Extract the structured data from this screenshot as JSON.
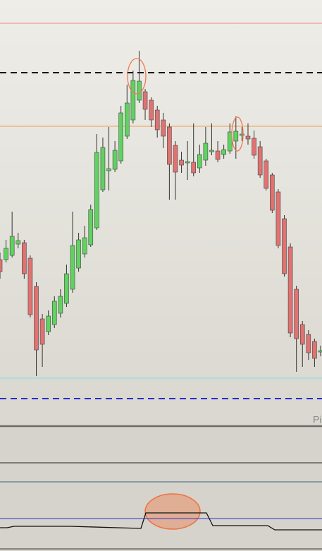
{
  "chart_data": [
    {
      "type": "candlestick",
      "open": [
        232,
        232,
        238,
        254,
        256,
        234,
        194,
        148,
        130,
        140,
        156,
        170,
        190,
        220,
        240,
        253,
        277,
        331,
        358,
        360,
        372,
        407,
        430,
        458,
        470,
        458,
        444,
        430,
        420,
        394,
        373,
        369,
        370,
        362,
        373,
        385,
        386,
        381,
        386,
        400,
        408,
        407,
        404,
        392,
        372,
        352,
        328,
        290,
        250,
        190,
        140,
        126,
        116,
        101
      ],
      "high": [
        242,
        260,
        300,
        270,
        260,
        238,
        200,
        155,
        160,
        180,
        190,
        225,
        300,
        270,
        280,
        310,
        410,
        405,
        420,
        400,
        450,
        480,
        500,
        528,
        474,
        462,
        450,
        440,
        425,
        400,
        385,
        400,
        425,
        395,
        420,
        425,
        400,
        395,
        425,
        435,
        420,
        425,
        415,
        400,
        375,
        355,
        332,
        295,
        255,
        195,
        145,
        132,
        120,
        110
      ],
      "low": [
        205,
        228,
        235,
        248,
        205,
        150,
        67,
        80,
        125,
        135,
        150,
        165,
        185,
        215,
        235,
        250,
        274,
        328,
        330,
        356,
        368,
        403,
        425,
        454,
        430,
        420,
        405,
        390,
        317,
        317,
        355,
        345,
        350,
        355,
        365,
        380,
        370,
        375,
        382,
        375,
        400,
        395,
        375,
        348,
        330,
        298,
        248,
        208,
        122,
        73,
        80,
        90,
        80,
        95
      ],
      "close": [
        215,
        248,
        265,
        259,
        212,
        154,
        104,
        112,
        152,
        173,
        180,
        212,
        252,
        260,
        263,
        303,
        384,
        391,
        361,
        387,
        440,
        454,
        486,
        485,
        445,
        430,
        416,
        407,
        367,
        356,
        366,
        371,
        355,
        381,
        397,
        387,
        374,
        388,
        413,
        414,
        410,
        403,
        380,
        352,
        333,
        302,
        252,
        212,
        128,
        120,
        112,
        100,
        92,
        103
      ],
      "up_color": "#5fd35f",
      "down_color": "#e07272",
      "ylim": [
        0,
        600
      ],
      "levels": [
        {
          "value": 567,
          "color": "#f08a80",
          "dash": false
        },
        {
          "value": 497,
          "color": "#111111",
          "dash": true
        },
        {
          "value": 421,
          "color": "#f0a050",
          "dash": false
        },
        {
          "value": 64,
          "color": "#7fe0e0",
          "dash": false
        },
        {
          "value": 35,
          "color": "#2a2ad0",
          "dash": true
        }
      ],
      "annotation": "Pi"
    },
    {
      "type": "line",
      "x": [
        0,
        10,
        20,
        100,
        200,
        207,
        293,
        302,
        380,
        390,
        457
      ],
      "values": [
        30,
        30,
        32,
        32,
        29,
        51,
        51,
        33,
        33,
        27,
        27
      ],
      "color": "#111111",
      "xlim": [
        0,
        457
      ],
      "ylim": [
        0,
        172
      ],
      "levels": [
        {
          "value": 122,
          "color": "#222222",
          "dash": false
        },
        {
          "value": 95,
          "color": "#8a9aa6",
          "dash": false
        },
        {
          "value": 43,
          "color": "#3030d8",
          "dash": false
        }
      ]
    }
  ]
}
